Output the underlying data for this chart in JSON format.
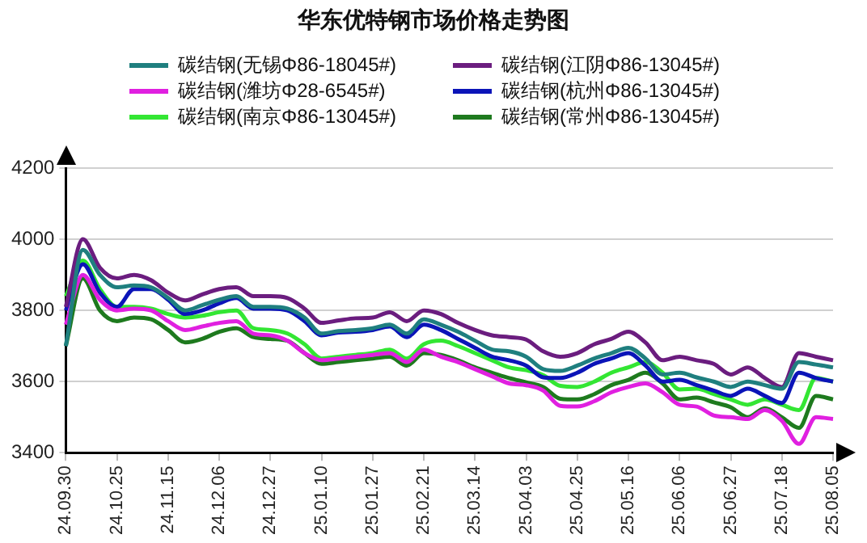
{
  "chart_data": {
    "type": "line",
    "title": "华东优特钢市场价格走势图",
    "categories": [
      "24.09.30",
      null,
      null,
      "24.10.25",
      null,
      null,
      "24.11.15",
      null,
      null,
      "24.12.06",
      null,
      null,
      "24.12.27",
      null,
      null,
      "25.01.10",
      null,
      null,
      "25.01.27",
      null,
      null,
      "25.02.21",
      null,
      null,
      "25.03.14",
      null,
      null,
      "25.04.03",
      null,
      null,
      "25.04.25",
      null,
      null,
      "25.05.16",
      null,
      null,
      "25.06.06",
      null,
      null,
      "25.06.27",
      null,
      null,
      "25.07.18",
      null,
      null,
      "25.08.05"
    ],
    "series": [
      {
        "name": "碳结钢(无锡Φ86-18045#)",
        "color": "#1f7f7f",
        "values": [
          3700,
          3970,
          3900,
          3865,
          3870,
          3865,
          3835,
          3800,
          3815,
          3830,
          3840,
          3810,
          3810,
          3805,
          3780,
          3735,
          3742,
          3745,
          3750,
          3760,
          3735,
          3775,
          3760,
          3740,
          3715,
          3690,
          3685,
          3670,
          3635,
          3630,
          3645,
          3665,
          3680,
          3695,
          3665,
          3620,
          3625,
          3612,
          3600,
          3585,
          3600,
          3590,
          3580,
          3655,
          3648,
          3640
        ]
      },
      {
        "name": "碳结钢(江阴Φ86-13045#)",
        "color": "#6b1d7f",
        "values": [
          3810,
          4000,
          3920,
          3890,
          3900,
          3885,
          3850,
          3828,
          3845,
          3860,
          3865,
          3840,
          3840,
          3835,
          3805,
          3765,
          3772,
          3778,
          3780,
          3795,
          3770,
          3800,
          3790,
          3765,
          3745,
          3730,
          3725,
          3718,
          3685,
          3670,
          3680,
          3705,
          3720,
          3740,
          3710,
          3660,
          3670,
          3660,
          3650,
          3620,
          3640,
          3610,
          3585,
          3680,
          3670,
          3660
        ]
      },
      {
        "name": "碳结钢(潍坊Φ28-6545#)",
        "color": "#e020e0",
        "values": [
          3760,
          3900,
          3830,
          3800,
          3805,
          3800,
          3770,
          3745,
          3755,
          3765,
          3770,
          3735,
          3730,
          3715,
          3680,
          3660,
          3665,
          3670,
          3675,
          3680,
          3655,
          3690,
          3670,
          3655,
          3635,
          3615,
          3595,
          3590,
          3575,
          3532,
          3530,
          3545,
          3570,
          3585,
          3595,
          3570,
          3535,
          3530,
          3505,
          3500,
          3495,
          3520,
          3490,
          3425,
          3500,
          3495
        ]
      },
      {
        "name": "碳结钢(杭州Φ86-13045#)",
        "color": "#0b14b8",
        "values": [
          3800,
          3930,
          3850,
          3810,
          3860,
          3860,
          3830,
          3790,
          3800,
          3820,
          3835,
          3805,
          3805,
          3800,
          3770,
          3730,
          3738,
          3740,
          3745,
          3755,
          3725,
          3760,
          3745,
          3720,
          3695,
          3670,
          3660,
          3645,
          3612,
          3610,
          3625,
          3650,
          3665,
          3680,
          3645,
          3600,
          3605,
          3590,
          3575,
          3560,
          3580,
          3560,
          3540,
          3625,
          3610,
          3600
        ]
      },
      {
        "name": "碳结钢(南京Φ86-13045#)",
        "color": "#33e633",
        "values": [
          3840,
          3940,
          3860,
          3810,
          3810,
          3805,
          3790,
          3780,
          3785,
          3795,
          3800,
          3750,
          3745,
          3735,
          3705,
          3665,
          3670,
          3675,
          3680,
          3690,
          3665,
          3705,
          3715,
          3700,
          3680,
          3660,
          3640,
          3632,
          3618,
          3588,
          3585,
          3600,
          3625,
          3640,
          3655,
          3625,
          3578,
          3580,
          3565,
          3550,
          3535,
          3550,
          3535,
          3520,
          3610,
          3600
        ]
      },
      {
        "name": "碳结钢(常州Φ86-13045#)",
        "color": "#1e7a1e",
        "values": [
          3700,
          3890,
          3800,
          3770,
          3780,
          3775,
          3745,
          3710,
          3720,
          3740,
          3750,
          3725,
          3720,
          3715,
          3680,
          3650,
          3655,
          3660,
          3665,
          3670,
          3645,
          3680,
          3675,
          3660,
          3640,
          3625,
          3610,
          3598,
          3585,
          3552,
          3550,
          3565,
          3590,
          3605,
          3625,
          3595,
          3550,
          3555,
          3542,
          3528,
          3500,
          3525,
          3500,
          3470,
          3560,
          3550
        ]
      }
    ],
    "ylim": [
      3400,
      4200
    ],
    "yticks": [
      3400,
      3600,
      3800,
      4000,
      4200
    ],
    "grid": "y",
    "legend": "top",
    "marker": "none",
    "line_style": "solid"
  }
}
